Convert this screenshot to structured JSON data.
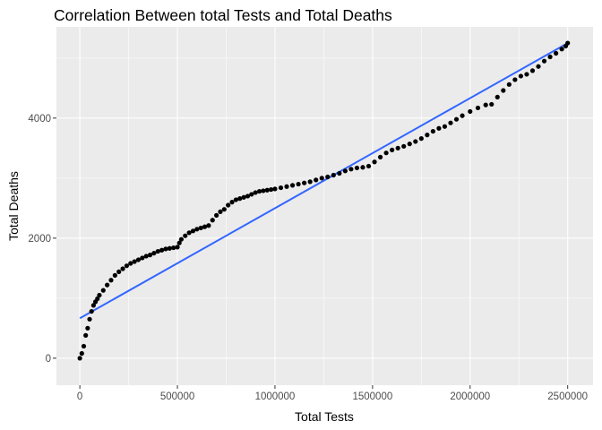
{
  "chart_data": {
    "type": "scatter",
    "title": "Correlation Between total Tests and Total Deaths",
    "xlabel": "Total Tests",
    "ylabel": "Total Deaths",
    "xlim": [
      -120000,
      2630000
    ],
    "ylim": [
      -450,
      5520
    ],
    "x_ticks": [
      0,
      500000,
      1000000,
      1500000,
      2000000,
      2500000
    ],
    "x_tick_labels": [
      "0",
      "500000",
      "1000000",
      "1500000",
      "2000000",
      "2500000"
    ],
    "y_ticks": [
      0,
      2000,
      4000
    ],
    "y_tick_labels": [
      "0",
      "2000",
      "4000"
    ],
    "grid": true,
    "panel_background": "#ebebeb",
    "grid_color": "#ffffff",
    "point_color": "#000000",
    "trend_line": {
      "method": "linear",
      "color": "#3366ff",
      "x": [
        0,
        2500000
      ],
      "y": [
        665,
        5250
      ]
    },
    "series": [
      {
        "x": [
          0,
          10000,
          20000,
          30000,
          40000,
          50000,
          60000,
          70000,
          80000,
          90000,
          100000,
          120000,
          140000,
          160000,
          180000,
          200000,
          220000,
          240000,
          260000,
          280000,
          300000,
          320000,
          340000,
          360000,
          380000,
          400000,
          420000,
          440000,
          460000,
          480000,
          500000,
          510000,
          520000,
          540000,
          560000,
          580000,
          600000,
          620000,
          640000,
          660000,
          680000,
          700000,
          720000,
          740000,
          760000,
          780000,
          800000,
          820000,
          840000,
          860000,
          880000,
          900000,
          920000,
          940000,
          960000,
          980000,
          1000000,
          1030000,
          1060000,
          1090000,
          1120000,
          1150000,
          1180000,
          1210000,
          1240000,
          1270000,
          1300000,
          1330000,
          1360000,
          1390000,
          1420000,
          1450000,
          1480000,
          1510000,
          1540000,
          1570000,
          1600000,
          1630000,
          1660000,
          1690000,
          1720000,
          1750000,
          1780000,
          1810000,
          1840000,
          1870000,
          1900000,
          1930000,
          1960000,
          2000000,
          2040000,
          2080000,
          2110000,
          2140000,
          2170000,
          2200000,
          2230000,
          2260000,
          2290000,
          2320000,
          2350000,
          2380000,
          2410000,
          2440000,
          2470000,
          2490000,
          2500000
        ],
        "y": [
          0,
          80,
          200,
          380,
          500,
          650,
          780,
          880,
          940,
          990,
          1050,
          1130,
          1220,
          1300,
          1380,
          1440,
          1490,
          1540,
          1580,
          1610,
          1640,
          1670,
          1700,
          1720,
          1750,
          1780,
          1800,
          1820,
          1830,
          1840,
          1850,
          1920,
          1980,
          2040,
          2090,
          2120,
          2150,
          2170,
          2190,
          2210,
          2300,
          2380,
          2440,
          2480,
          2550,
          2600,
          2640,
          2660,
          2680,
          2700,
          2730,
          2760,
          2780,
          2790,
          2800,
          2810,
          2820,
          2840,
          2860,
          2880,
          2900,
          2920,
          2940,
          2970,
          3000,
          3020,
          3050,
          3080,
          3120,
          3150,
          3170,
          3180,
          3200,
          3270,
          3350,
          3420,
          3470,
          3500,
          3530,
          3570,
          3610,
          3660,
          3720,
          3780,
          3830,
          3860,
          3920,
          3980,
          4040,
          4110,
          4170,
          4220,
          4230,
          4350,
          4460,
          4560,
          4640,
          4700,
          4730,
          4790,
          4860,
          4950,
          5020,
          5080,
          5150,
          5200,
          5250
        ]
      }
    ]
  }
}
